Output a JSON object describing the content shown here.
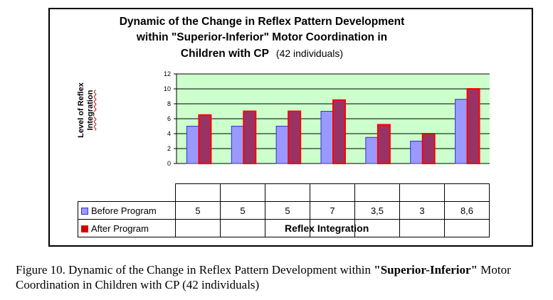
{
  "chart_data": {
    "type": "bar",
    "title_line1": "Dynamic of the Change in Reflex Pattern Development",
    "title_line2": "within  \"Superior-Inferior\" Motor  Coordination  in",
    "title_line3": "Children with CP",
    "subtitle": "(42 individuals)",
    "ylabel_line1": "Level of Reflex",
    "ylabel_line2": "Integration",
    "xlabel": "Reflex Integration",
    "ylim": [
      0,
      12
    ],
    "yticks": [
      "0",
      "2",
      "4",
      "6",
      "8",
      "10",
      "12"
    ],
    "categories": [
      "",
      "",
      "",
      "",
      "",
      "",
      ""
    ],
    "series": [
      {
        "name": "Before Program",
        "values": [
          5,
          5,
          5,
          7,
          3.5,
          3,
          8.6
        ],
        "labels": [
          "5",
          "5",
          "5",
          "7",
          "3,5",
          "3",
          "8,6"
        ],
        "color": "#9999ff"
      },
      {
        "name": "After Program",
        "values": [
          6.5,
          7,
          7,
          8.5,
          5.2,
          4,
          10
        ],
        "labels": [
          "",
          "",
          "",
          "",
          "",
          "",
          ""
        ],
        "color": "#993366"
      }
    ],
    "grid": true,
    "plot_background": "#ccffcc",
    "bar_outline_after": "#ff0000"
  },
  "caption": {
    "part1": "Figure 10. Dynamic of the Change in Reflex Pattern Development within ",
    "bold": "\"Superior-Inferior\"",
    "part2": " Motor Coordination in Children with CP (42 individuals)"
  }
}
